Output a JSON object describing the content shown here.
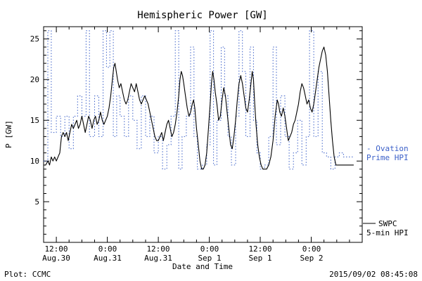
{
  "title": "Hemispheric Power [GW]",
  "footer": {
    "left": "Plot: CCMC",
    "right": "2015/09/02 08:45:08"
  },
  "colors": {
    "ovation": "#3a5fc8",
    "swpc": "#000000"
  },
  "chart_data": {
    "type": "line",
    "title": "Hemispheric Power [GW]",
    "xlabel": "Date and Time",
    "ylabel": "P [GW]",
    "ylim": [
      0,
      26.5
    ],
    "xlim_hours_since_aug30": [
      9,
      84
    ],
    "grid": false,
    "legend_position": "right-outside",
    "y_ticks": [
      5,
      10,
      15,
      20,
      25
    ],
    "x_ticks": [
      {
        "hour": 12,
        "time": "12:00",
        "date": "Aug.30"
      },
      {
        "hour": 24,
        "time": "0:00",
        "date": "Aug.31"
      },
      {
        "hour": 36,
        "time": "12:00",
        "date": "Aug.31"
      },
      {
        "hour": 48,
        "time": "0:00",
        "date": "Sep 1"
      },
      {
        "hour": 60,
        "time": "12:00",
        "date": "Sep 1"
      },
      {
        "hour": 72,
        "time": "0:00",
        "date": "Sep 2"
      }
    ],
    "series": [
      {
        "name": "Ovation Prime HPI",
        "legend_line1": "- Ovation",
        "legend_line2": "Prime HPI",
        "color": "#3a5fc8",
        "style": "dotted-step",
        "points": [
          [
            9,
            10
          ],
          [
            10,
            26
          ],
          [
            10.8,
            13.5
          ],
          [
            12,
            15.5
          ],
          [
            13,
            13
          ],
          [
            14,
            15.5
          ],
          [
            15,
            11.5
          ],
          [
            16,
            15.5
          ],
          [
            17,
            18
          ],
          [
            18,
            15.5
          ],
          [
            19,
            26
          ],
          [
            19.8,
            13
          ],
          [
            21,
            18
          ],
          [
            22,
            13
          ],
          [
            23,
            26
          ],
          [
            23.8,
            21.5
          ],
          [
            24.6,
            26
          ],
          [
            25.4,
            13
          ],
          [
            26.2,
            18
          ],
          [
            27,
            15.5
          ],
          [
            28,
            13
          ],
          [
            29,
            18
          ],
          [
            30,
            15
          ],
          [
            31,
            11.5
          ],
          [
            32,
            18
          ],
          [
            33,
            13
          ],
          [
            34,
            15.5
          ],
          [
            35,
            11
          ],
          [
            36,
            13
          ],
          [
            37,
            9
          ],
          [
            38,
            12
          ],
          [
            39,
            15.5
          ],
          [
            40,
            26
          ],
          [
            40.8,
            9
          ],
          [
            41.6,
            13
          ],
          [
            42.6,
            15.5
          ],
          [
            43.6,
            24
          ],
          [
            44.4,
            13
          ],
          [
            45.2,
            9
          ],
          [
            46.4,
            9.5
          ],
          [
            47.4,
            12
          ],
          [
            48.2,
            26
          ],
          [
            49,
            9.5
          ],
          [
            49.8,
            15
          ],
          [
            50.8,
            24
          ],
          [
            51.6,
            18
          ],
          [
            52.4,
            13
          ],
          [
            53.2,
            9.5
          ],
          [
            54.2,
            15.5
          ],
          [
            55,
            26
          ],
          [
            55.8,
            21
          ],
          [
            56.6,
            13
          ],
          [
            57.6,
            24
          ],
          [
            58.4,
            15
          ],
          [
            59.2,
            11
          ],
          [
            60,
            9
          ],
          [
            61,
            9.5
          ],
          [
            62,
            13
          ],
          [
            63,
            24
          ],
          [
            63.8,
            12
          ],
          [
            64.8,
            18
          ],
          [
            65.8,
            13
          ],
          [
            66.8,
            9
          ],
          [
            67.8,
            11
          ],
          [
            68.8,
            15
          ],
          [
            69.8,
            9.5
          ],
          [
            70.8,
            13
          ],
          [
            71.6,
            26
          ],
          [
            72.6,
            13
          ],
          [
            73.6,
            21
          ],
          [
            74.6,
            11
          ],
          [
            75.6,
            10.5
          ],
          [
            76.6,
            9
          ],
          [
            77.6,
            10.5
          ],
          [
            78.6,
            11
          ],
          [
            79.6,
            10.5
          ],
          [
            81,
            10.5
          ],
          [
            82,
            10.5
          ]
        ]
      },
      {
        "name": "SWPC 5-min HPI",
        "legend_line1": "SWPC",
        "legend_line2": "5-min HPI",
        "color": "#000000",
        "style": "solid",
        "points": [
          [
            9,
            9.5
          ],
          [
            9.5,
            9.5
          ],
          [
            10,
            10
          ],
          [
            10.4,
            9.5
          ],
          [
            10.8,
            10.5
          ],
          [
            11.2,
            10
          ],
          [
            11.6,
            10.5
          ],
          [
            12,
            10
          ],
          [
            12.4,
            10.5
          ],
          [
            12.8,
            11
          ],
          [
            13.2,
            13
          ],
          [
            13.6,
            13.5
          ],
          [
            14,
            13
          ],
          [
            14.4,
            13.5
          ],
          [
            14.8,
            12.5
          ],
          [
            15.2,
            13.5
          ],
          [
            15.6,
            14.5
          ],
          [
            16,
            14
          ],
          [
            16.4,
            14.5
          ],
          [
            16.8,
            15
          ],
          [
            17.2,
            14
          ],
          [
            17.6,
            14.5
          ],
          [
            18,
            15.5
          ],
          [
            18.4,
            14.5
          ],
          [
            18.8,
            13.5
          ],
          [
            19.2,
            14.5
          ],
          [
            19.6,
            15.5
          ],
          [
            20,
            15
          ],
          [
            20.4,
            14
          ],
          [
            20.8,
            15
          ],
          [
            21.2,
            15.5
          ],
          [
            21.6,
            14.5
          ],
          [
            22,
            15
          ],
          [
            22.4,
            16
          ],
          [
            22.8,
            15
          ],
          [
            23.2,
            14.5
          ],
          [
            23.6,
            15
          ],
          [
            24,
            15.5
          ],
          [
            24.4,
            16.5
          ],
          [
            24.8,
            18
          ],
          [
            25.2,
            20
          ],
          [
            25.5,
            21.5
          ],
          [
            25.8,
            22
          ],
          [
            26.1,
            21
          ],
          [
            26.4,
            20
          ],
          [
            26.8,
            19
          ],
          [
            27.2,
            19.5
          ],
          [
            27.6,
            18.5
          ],
          [
            28,
            17.5
          ],
          [
            28.4,
            17
          ],
          [
            28.8,
            17.5
          ],
          [
            29.2,
            18.5
          ],
          [
            29.6,
            19.5
          ],
          [
            30,
            19
          ],
          [
            30.4,
            18.5
          ],
          [
            30.8,
            19.5
          ],
          [
            31.2,
            18.5
          ],
          [
            31.6,
            17.5
          ],
          [
            32,
            17
          ],
          [
            32.4,
            17.5
          ],
          [
            32.8,
            18
          ],
          [
            33.2,
            17.5
          ],
          [
            33.6,
            17
          ],
          [
            34,
            16
          ],
          [
            34.4,
            15
          ],
          [
            34.8,
            14
          ],
          [
            35.2,
            13
          ],
          [
            35.6,
            12.5
          ],
          [
            36,
            12.5
          ],
          [
            36.4,
            13
          ],
          [
            36.8,
            13.5
          ],
          [
            37.2,
            12.5
          ],
          [
            37.6,
            13.5
          ],
          [
            38,
            14.5
          ],
          [
            38.4,
            15
          ],
          [
            38.8,
            14
          ],
          [
            39.2,
            13
          ],
          [
            39.6,
            13.5
          ],
          [
            40,
            14.5
          ],
          [
            40.4,
            16
          ],
          [
            40.8,
            18
          ],
          [
            41.1,
            20
          ],
          [
            41.4,
            21
          ],
          [
            41.7,
            20.5
          ],
          [
            42,
            19.5
          ],
          [
            42.4,
            18
          ],
          [
            42.8,
            16.5
          ],
          [
            43.2,
            15.5
          ],
          [
            43.6,
            16
          ],
          [
            44,
            17
          ],
          [
            44.3,
            17.5
          ],
          [
            44.6,
            16.5
          ],
          [
            45,
            14
          ],
          [
            45.4,
            12
          ],
          [
            45.8,
            10
          ],
          [
            46.2,
            9
          ],
          [
            46.6,
            9
          ],
          [
            47,
            9.5
          ],
          [
            47.4,
            11
          ],
          [
            47.8,
            14
          ],
          [
            48.2,
            17
          ],
          [
            48.5,
            19.5
          ],
          [
            48.8,
            21
          ],
          [
            49.1,
            20
          ],
          [
            49.4,
            18.5
          ],
          [
            49.8,
            17
          ],
          [
            50.2,
            15
          ],
          [
            50.6,
            15.5
          ],
          [
            51,
            17.5
          ],
          [
            51.4,
            19
          ],
          [
            51.8,
            18
          ],
          [
            52.2,
            16
          ],
          [
            52.6,
            14
          ],
          [
            53,
            12
          ],
          [
            53.4,
            11.5
          ],
          [
            53.8,
            13
          ],
          [
            54.2,
            15
          ],
          [
            54.6,
            17.5
          ],
          [
            55,
            19.5
          ],
          [
            55.4,
            20.5
          ],
          [
            55.8,
            19.5
          ],
          [
            56.2,
            18
          ],
          [
            56.6,
            16.5
          ],
          [
            57,
            16
          ],
          [
            57.4,
            17.5
          ],
          [
            57.8,
            19.5
          ],
          [
            58.1,
            21
          ],
          [
            58.4,
            20
          ],
          [
            58.7,
            17
          ],
          [
            59,
            14.5
          ],
          [
            59.4,
            12
          ],
          [
            59.8,
            10.5
          ],
          [
            60.2,
            9.5
          ],
          [
            60.6,
            9
          ],
          [
            61,
            9
          ],
          [
            61.5,
            9
          ],
          [
            62,
            9.5
          ],
          [
            62.5,
            10.5
          ],
          [
            63,
            12.5
          ],
          [
            63.5,
            15.5
          ],
          [
            64,
            17.5
          ],
          [
            64.3,
            17
          ],
          [
            64.6,
            16
          ],
          [
            65,
            15.5
          ],
          [
            65.4,
            16.5
          ],
          [
            65.8,
            15.5
          ],
          [
            66.2,
            14
          ],
          [
            66.6,
            12.5
          ],
          [
            67,
            13
          ],
          [
            67.4,
            13.5
          ],
          [
            67.8,
            14.5
          ],
          [
            68.2,
            15
          ],
          [
            68.6,
            16
          ],
          [
            69,
            17
          ],
          [
            69.4,
            18.5
          ],
          [
            69.8,
            19.5
          ],
          [
            70.2,
            19
          ],
          [
            70.6,
            18
          ],
          [
            71,
            17
          ],
          [
            71.4,
            17.5
          ],
          [
            71.8,
            16.5
          ],
          [
            72.2,
            16
          ],
          [
            72.6,
            17
          ],
          [
            73,
            18.5
          ],
          [
            73.4,
            20
          ],
          [
            73.8,
            21.5
          ],
          [
            74.2,
            22.5
          ],
          [
            74.6,
            23.5
          ],
          [
            75,
            24
          ],
          [
            75.4,
            23
          ],
          [
            75.8,
            21
          ],
          [
            76.2,
            18
          ],
          [
            76.6,
            15
          ],
          [
            77,
            12.5
          ],
          [
            77.4,
            10.5
          ],
          [
            77.8,
            9.5
          ],
          [
            78.5,
            9.5
          ],
          [
            79.5,
            9.5
          ],
          [
            80.5,
            9.5
          ],
          [
            81.5,
            9.5
          ],
          [
            82,
            9.5
          ]
        ]
      }
    ]
  }
}
